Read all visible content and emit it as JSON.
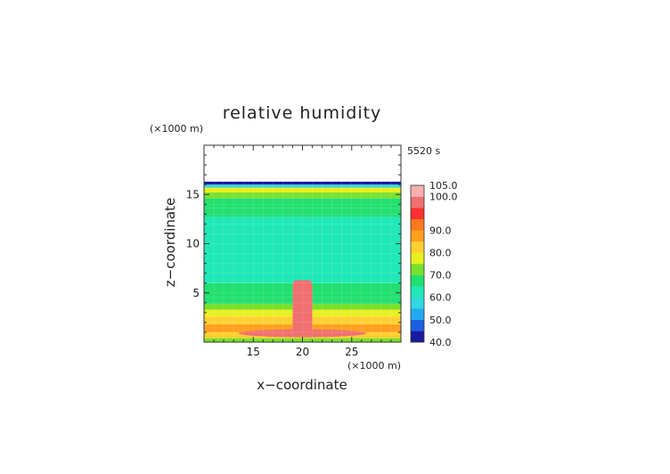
{
  "chart_data": {
    "type": "heatmap",
    "title": "relative humidity",
    "time_label": "5520 s",
    "xlabel": "x−coordinate",
    "ylabel": "z−coordinate",
    "x_unit": "(×1000 m)",
    "y_unit": "(×1000 m)",
    "xlim": [
      10,
      30
    ],
    "ylim": [
      0,
      20
    ],
    "x_ticks": [
      "15",
      "20",
      "25"
    ],
    "y_ticks": [
      "5",
      "10",
      "15"
    ],
    "x_tick_values": [
      15,
      20,
      25
    ],
    "y_tick_values": [
      5,
      10,
      15
    ],
    "colorbar": {
      "levels": [
        40,
        45,
        50,
        55,
        60,
        65,
        70,
        75,
        80,
        85,
        90,
        95,
        100,
        105
      ],
      "tick_labels": [
        "40.0",
        "50.0",
        "60.0",
        "70.0",
        "80.0",
        "90.0",
        "100.0",
        "105.0"
      ],
      "colors": [
        "#1a1aa0",
        "#1e5fe0",
        "#22aaf0",
        "#30d8e0",
        "#20e8b8",
        "#22e070",
        "#78e030",
        "#e8f020",
        "#ffd030",
        "#ffa020",
        "#ff7820",
        "#ff3030",
        "#f07070",
        "#f4b0b0"
      ]
    },
    "background_levels": [
      {
        "z_from": 0.0,
        "z_to": 0.4,
        "value": 74
      },
      {
        "z_from": 0.4,
        "z_to": 1.0,
        "value": 80
      },
      {
        "z_from": 1.0,
        "z_to": 1.8,
        "value": 86
      },
      {
        "z_from": 1.8,
        "z_to": 2.6,
        "value": 82
      },
      {
        "z_from": 2.6,
        "z_to": 3.3,
        "value": 78
      },
      {
        "z_from": 3.3,
        "z_to": 3.9,
        "value": 72
      },
      {
        "z_from": 3.9,
        "z_to": 4.6,
        "value": 68
      },
      {
        "z_from": 4.6,
        "z_to": 6.0,
        "value": 66
      },
      {
        "z_from": 6.0,
        "z_to": 12.7,
        "value": 62
      },
      {
        "z_from": 12.7,
        "z_to": 13.6,
        "value": 66
      },
      {
        "z_from": 13.6,
        "z_to": 14.6,
        "value": 68
      },
      {
        "z_from": 14.6,
        "z_to": 15.2,
        "value": 72
      },
      {
        "z_from": 15.2,
        "z_to": 15.7,
        "value": 75
      },
      {
        "z_from": 15.7,
        "z_to": 16.0,
        "value": 55
      },
      {
        "z_from": 16.0,
        "z_to": 16.3,
        "value": 42
      }
    ],
    "features": [
      {
        "name": "surface-red-band",
        "x": [
          13.5,
          26.5
        ],
        "z": [
          0.5,
          1.3
        ],
        "value": 101
      },
      {
        "name": "cloud-column",
        "x": [
          19.0,
          21.0
        ],
        "z": [
          0.8,
          6.3
        ],
        "value": 100
      },
      {
        "name": "cloud-core",
        "x": [
          19.3,
          20.7
        ],
        "z": [
          0.8,
          6.0
        ],
        "value": 103
      }
    ]
  }
}
